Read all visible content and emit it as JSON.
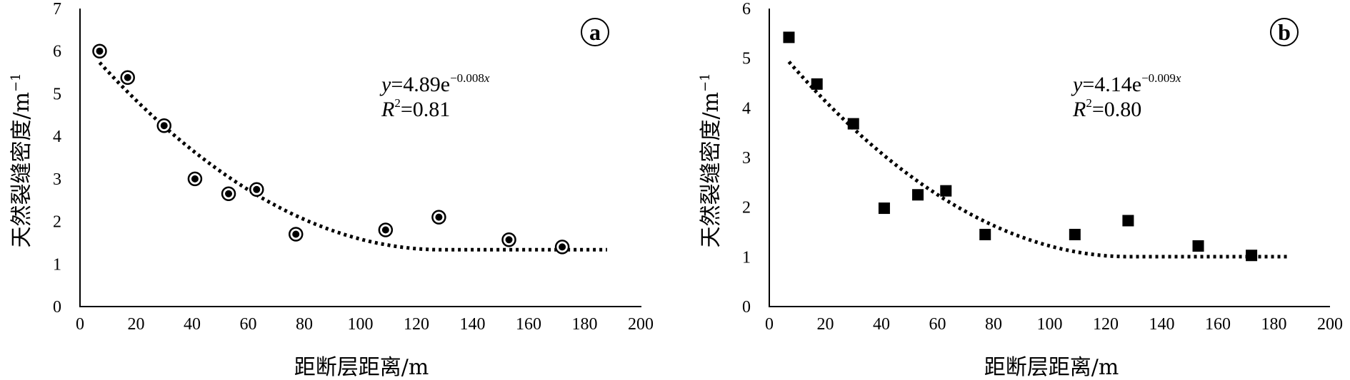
{
  "chart_data": [
    {
      "type": "scatter",
      "panel_label": "a",
      "marker": "circle-dot",
      "xlabel": "距断层距离/m",
      "ylabel": "天然裂缝密度/m",
      "ylabel_sup": "−1",
      "xlim": [
        0,
        200
      ],
      "ylim": [
        0,
        7
      ],
      "x_ticks": [
        "0",
        "20",
        "40",
        "60",
        "80",
        "100",
        "120",
        "140",
        "160",
        "180",
        "200"
      ],
      "y_ticks": [
        "0",
        "1",
        "2",
        "3",
        "4",
        "5",
        "6",
        "7"
      ],
      "grid": false,
      "x": [
        7,
        17,
        30,
        41,
        53,
        63,
        77,
        109,
        128,
        153,
        172
      ],
      "y": [
        6.0,
        5.38,
        4.25,
        3.0,
        2.65,
        2.75,
        1.7,
        1.8,
        2.1,
        1.57,
        1.4
      ],
      "trendline": {
        "style": "dotted",
        "x_start": 7,
        "x_end": 188,
        "equation": {
          "y_var": "y",
          "equals_coef": "=4.89e",
          "exponent": "−0.008",
          "x_var": "x"
        },
        "r2": {
          "r_var": "R",
          "r_sup": "2",
          "value_text": "=0.81"
        }
      }
    },
    {
      "type": "scatter",
      "panel_label": "b",
      "marker": "square",
      "xlabel": "距断层距离/m",
      "ylabel": "天然裂缝密度/m",
      "ylabel_sup": "−1",
      "xlim": [
        0,
        200
      ],
      "ylim": [
        0,
        6
      ],
      "x_ticks": [
        "0",
        "20",
        "40",
        "60",
        "80",
        "100",
        "120",
        "140",
        "160",
        "180",
        "200"
      ],
      "y_ticks": [
        "0",
        "1",
        "2",
        "3",
        "4",
        "5",
        "6"
      ],
      "grid": false,
      "x": [
        7,
        17,
        30,
        41,
        53,
        63,
        77,
        109,
        128,
        153,
        172
      ],
      "y": [
        5.42,
        4.48,
        3.68,
        1.98,
        2.25,
        2.33,
        1.45,
        1.45,
        1.73,
        1.22,
        1.03
      ],
      "trendline": {
        "style": "dotted",
        "x_start": 7,
        "x_end": 185,
        "equation": {
          "y_var": "y",
          "equals_coef": "=4.14e",
          "exponent": "−0.009",
          "x_var": "x"
        },
        "r2": {
          "r_var": "R",
          "r_sup": "2",
          "value_text": "=0.80"
        }
      }
    }
  ]
}
